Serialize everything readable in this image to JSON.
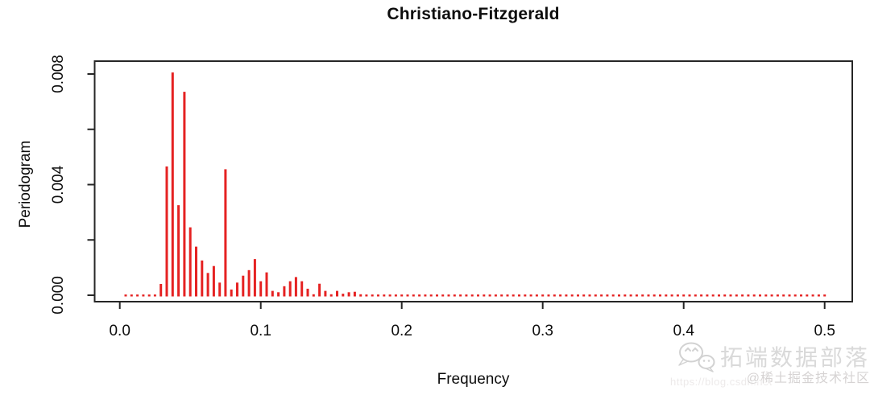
{
  "title": "Christiano-Fitzgerald",
  "watermark": {
    "icon": "wechat-icon",
    "brand": "拓端数据部落",
    "community": "@稀土掘金技术社区",
    "url": "https://blog.csdn.net"
  },
  "chart_data": {
    "type": "bar",
    "subtype": "periodogram-spikes",
    "title": "Christiano-Fitzgerald",
    "xlabel": "Frequency",
    "ylabel": "Periodogram",
    "xlim": [
      0,
      0.5
    ],
    "ylim": [
      0,
      0.008
    ],
    "grid": false,
    "legend": "none",
    "color": "#e52222",
    "axis_color": "#262626",
    "frequency_step": 0.00417,
    "x_ticks": [
      {
        "v": 0.0,
        "label": "0.0"
      },
      {
        "v": 0.1,
        "label": "0.1"
      },
      {
        "v": 0.2,
        "label": "0.2"
      },
      {
        "v": 0.3,
        "label": "0.3"
      },
      {
        "v": 0.4,
        "label": "0.4"
      },
      {
        "v": 0.5,
        "label": "0.5"
      }
    ],
    "y_ticks": [
      {
        "v": 0.0,
        "label": "0.000"
      },
      {
        "v": 0.002,
        "label": ""
      },
      {
        "v": 0.004,
        "label": "0.004"
      },
      {
        "v": 0.006,
        "label": ""
      },
      {
        "v": 0.008,
        "label": "0.008"
      }
    ],
    "x": [
      0.00417,
      0.00833,
      0.0125,
      0.01667,
      0.02083,
      0.025,
      0.02917,
      0.03333,
      0.0375,
      0.04167,
      0.04583,
      0.05,
      0.05417,
      0.05833,
      0.0625,
      0.06667,
      0.07083,
      0.075,
      0.07917,
      0.08333,
      0.0875,
      0.09167,
      0.09583,
      0.1,
      0.10417,
      0.10833,
      0.1125,
      0.11667,
      0.12083,
      0.125,
      0.12917,
      0.13333,
      0.1375,
      0.14167,
      0.14583,
      0.15,
      0.15417,
      0.15833,
      0.1625,
      0.16667,
      0.17083,
      0.175,
      0.17917,
      0.18333,
      0.1875,
      0.19167,
      0.19583,
      0.2,
      0.20417,
      0.20833,
      0.2125,
      0.21667,
      0.22083,
      0.225,
      0.22917,
      0.23333,
      0.2375,
      0.24167,
      0.24583,
      0.25,
      0.25417,
      0.25833,
      0.2625,
      0.26667,
      0.27083,
      0.275,
      0.27917,
      0.28333,
      0.2875,
      0.29167,
      0.29583,
      0.3,
      0.30417,
      0.30833,
      0.3125,
      0.31667,
      0.32083,
      0.325,
      0.32917,
      0.33333,
      0.3375,
      0.34167,
      0.34583,
      0.35,
      0.35417,
      0.35833,
      0.3625,
      0.36667,
      0.37083,
      0.375,
      0.37917,
      0.38333,
      0.3875,
      0.39167,
      0.39583,
      0.4,
      0.40417,
      0.40833,
      0.4125,
      0.41667,
      0.42083,
      0.425,
      0.42917,
      0.43333,
      0.4375,
      0.44167,
      0.44583,
      0.45,
      0.45417,
      0.45833,
      0.4625,
      0.46667,
      0.47083,
      0.475,
      0.47917,
      0.48333,
      0.4875,
      0.49167,
      0.49583,
      0.5
    ],
    "values": [
      2e-05,
      2e-05,
      3e-05,
      3e-05,
      4e-05,
      6e-05,
      0.00045,
      0.0047,
      0.0081,
      0.0033,
      0.0074,
      0.0025,
      0.0018,
      0.0013,
      0.00085,
      0.0011,
      0.0005,
      0.0046,
      0.00025,
      0.0005,
      0.00075,
      0.00095,
      0.00135,
      0.00055,
      0.00087,
      0.0002,
      0.00015,
      0.00037,
      0.00055,
      0.0007,
      0.00055,
      0.00028,
      8e-05,
      0.00046,
      0.0002,
      8e-05,
      0.0002,
      0.0001,
      0.00015,
      0.00017,
      8e-05,
      6e-05,
      5e-05,
      4e-05,
      3e-05,
      3e-05,
      3e-05,
      3e-05,
      3e-05,
      3e-05,
      3e-05,
      3e-05,
      3e-05,
      3e-05,
      3e-05,
      3e-05,
      3e-05,
      3e-05,
      3e-05,
      3e-05,
      3e-05,
      3e-05,
      3e-05,
      3e-05,
      3e-05,
      3e-05,
      3e-05,
      3e-05,
      3e-05,
      3e-05,
      3e-05,
      3e-05,
      3e-05,
      3e-05,
      3e-05,
      3e-05,
      3e-05,
      3e-05,
      3e-05,
      3e-05,
      3e-05,
      3e-05,
      3e-05,
      3e-05,
      3e-05,
      3e-05,
      3e-05,
      3e-05,
      3e-05,
      3e-05,
      3e-05,
      3e-05,
      3e-05,
      3e-05,
      3e-05,
      3e-05,
      3e-05,
      3e-05,
      3e-05,
      3e-05,
      3e-05,
      3e-05,
      3e-05,
      3e-05,
      3e-05,
      3e-05,
      3e-05,
      3e-05,
      3e-05,
      3e-05,
      3e-05,
      3e-05,
      3e-05,
      3e-05,
      3e-05,
      3e-05,
      3e-05,
      3e-05,
      3e-05,
      3e-05
    ]
  }
}
